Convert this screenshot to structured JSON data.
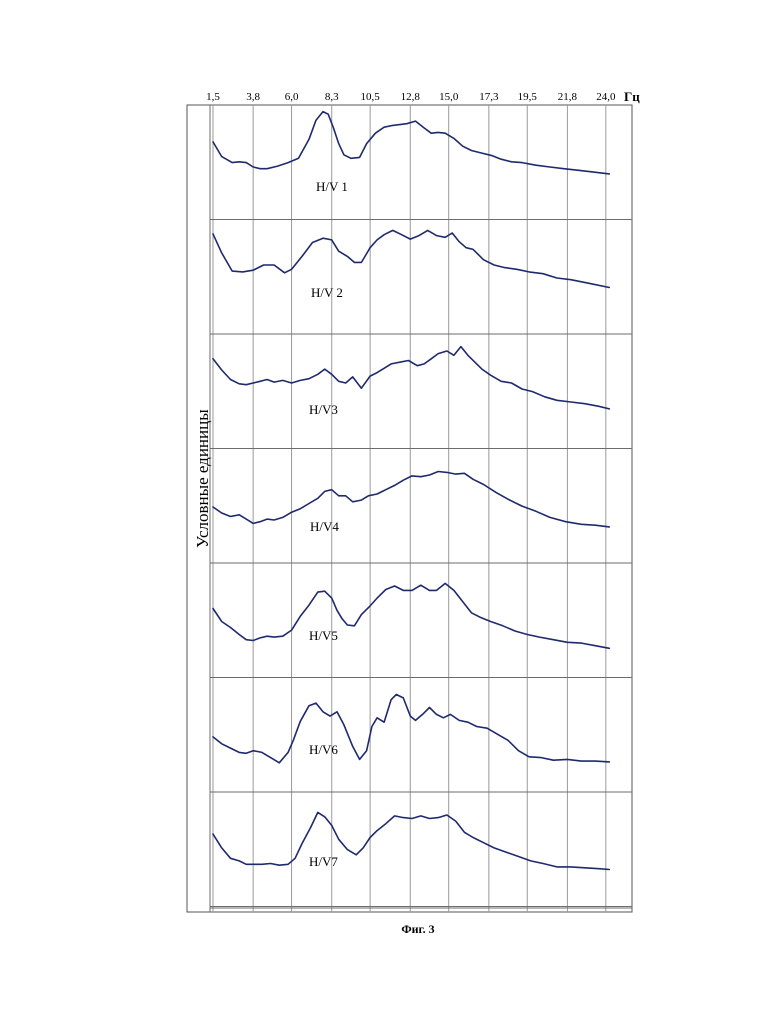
{
  "chart_data": {
    "type": "line",
    "x_unit": "Гц",
    "y_label": "Условные единицы",
    "caption": "Фиг. 3",
    "ticks": [
      {
        "value": 1.5,
        "label": "1,5"
      },
      {
        "value": 3.8,
        "label": "3,8"
      },
      {
        "value": 6.0,
        "label": "6,0"
      },
      {
        "value": 8.3,
        "label": "8,3"
      },
      {
        "value": 10.5,
        "label": "10,5"
      },
      {
        "value": 12.8,
        "label": "12,8"
      },
      {
        "value": 15.0,
        "label": "15,0"
      },
      {
        "value": 17.3,
        "label": "17,3"
      },
      {
        "value": 19.5,
        "label": "19,5"
      },
      {
        "value": 21.8,
        "label": "21,8"
      },
      {
        "value": 24.0,
        "label": "24,0"
      }
    ],
    "xlim": [
      1.5,
      25.5
    ],
    "ylim": [
      0,
      1
    ],
    "grid": true,
    "series": [
      {
        "name": "H/V 1",
        "x": [
          1.5,
          2.0,
          2.6,
          3.0,
          3.4,
          3.8,
          4.2,
          4.6,
          5.2,
          5.8,
          6.4,
          7.0,
          7.4,
          7.8,
          8.1,
          8.4,
          8.7,
          9.0,
          9.4,
          9.9,
          10.3,
          10.8,
          11.3,
          11.8,
          12.2,
          12.6,
          13.1,
          13.6,
          14.0,
          14.4,
          14.8,
          15.3,
          15.8,
          16.3,
          16.9,
          17.5,
          18.0,
          18.6,
          19.2,
          20.0,
          20.8,
          21.6,
          22.5,
          23.3,
          24.2
        ],
        "y": [
          0.62,
          0.45,
          0.38,
          0.39,
          0.38,
          0.33,
          0.31,
          0.31,
          0.34,
          0.38,
          0.43,
          0.65,
          0.87,
          0.97,
          0.94,
          0.78,
          0.6,
          0.47,
          0.43,
          0.44,
          0.6,
          0.72,
          0.79,
          0.81,
          0.82,
          0.83,
          0.86,
          0.78,
          0.72,
          0.73,
          0.72,
          0.66,
          0.57,
          0.52,
          0.49,
          0.46,
          0.42,
          0.39,
          0.38,
          0.35,
          0.33,
          0.31,
          0.29,
          0.27,
          0.25
        ]
      },
      {
        "name": "H/V 2",
        "x": [
          1.5,
          2.0,
          2.6,
          3.2,
          3.8,
          4.4,
          5.0,
          5.6,
          6.0,
          6.6,
          7.2,
          7.8,
          8.3,
          8.7,
          9.2,
          9.6,
          10.0,
          10.5,
          10.9,
          11.3,
          11.8,
          12.3,
          12.8,
          13.3,
          13.8,
          14.3,
          14.8,
          15.2,
          15.6,
          16.0,
          16.4,
          17.0,
          17.6,
          18.2,
          18.9,
          19.6,
          20.4,
          21.2,
          22.0,
          23.0,
          24.2
        ],
        "y": [
          0.88,
          0.66,
          0.45,
          0.44,
          0.46,
          0.52,
          0.52,
          0.43,
          0.47,
          0.62,
          0.78,
          0.83,
          0.81,
          0.68,
          0.62,
          0.55,
          0.55,
          0.72,
          0.81,
          0.87,
          0.92,
          0.87,
          0.82,
          0.86,
          0.92,
          0.86,
          0.84,
          0.89,
          0.79,
          0.72,
          0.7,
          0.58,
          0.52,
          0.49,
          0.47,
          0.44,
          0.42,
          0.37,
          0.35,
          0.31,
          0.26
        ]
      },
      {
        "name": "H/V3",
        "x": [
          1.5,
          2.0,
          2.5,
          3.0,
          3.4,
          3.8,
          4.2,
          4.6,
          5.0,
          5.5,
          6.0,
          6.5,
          7.0,
          7.5,
          7.9,
          8.3,
          8.7,
          9.1,
          9.5,
          10.0,
          10.5,
          10.9,
          11.3,
          11.7,
          12.2,
          12.7,
          13.2,
          13.6,
          14.0,
          14.4,
          14.9,
          15.3,
          15.7,
          16.1,
          16.5,
          16.9,
          17.4,
          18.0,
          18.6,
          19.2,
          19.8,
          20.5,
          21.2,
          22.0,
          22.8,
          23.6,
          24.2
        ],
        "y": [
          0.76,
          0.63,
          0.52,
          0.47,
          0.46,
          0.48,
          0.5,
          0.52,
          0.49,
          0.51,
          0.48,
          0.51,
          0.53,
          0.58,
          0.64,
          0.58,
          0.5,
          0.48,
          0.55,
          0.42,
          0.56,
          0.6,
          0.65,
          0.7,
          0.72,
          0.74,
          0.68,
          0.7,
          0.76,
          0.82,
          0.85,
          0.8,
          0.9,
          0.8,
          0.72,
          0.64,
          0.57,
          0.5,
          0.48,
          0.41,
          0.38,
          0.32,
          0.28,
          0.26,
          0.24,
          0.21,
          0.18
        ]
      },
      {
        "name": "H/V4",
        "x": [
          1.5,
          2.0,
          2.5,
          3.0,
          3.4,
          3.8,
          4.2,
          4.6,
          5.0,
          5.5,
          6.0,
          6.5,
          7.0,
          7.5,
          7.9,
          8.3,
          8.7,
          9.1,
          9.5,
          10.0,
          10.4,
          10.9,
          11.4,
          11.9,
          12.4,
          12.9,
          13.4,
          13.9,
          14.4,
          14.9,
          15.4,
          15.9,
          16.4,
          17.0,
          17.7,
          18.4,
          19.2,
          20.0,
          20.8,
          21.7,
          22.6,
          23.4,
          24.2
        ],
        "y": [
          0.37,
          0.3,
          0.26,
          0.28,
          0.23,
          0.18,
          0.2,
          0.23,
          0.22,
          0.25,
          0.31,
          0.35,
          0.41,
          0.47,
          0.55,
          0.57,
          0.5,
          0.5,
          0.43,
          0.45,
          0.5,
          0.52,
          0.57,
          0.62,
          0.68,
          0.73,
          0.72,
          0.74,
          0.78,
          0.77,
          0.75,
          0.76,
          0.69,
          0.63,
          0.54,
          0.46,
          0.38,
          0.32,
          0.25,
          0.2,
          0.17,
          0.16,
          0.14
        ]
      },
      {
        "name": "H/V5",
        "x": [
          1.5,
          2.0,
          2.5,
          3.0,
          3.4,
          3.8,
          4.2,
          4.6,
          5.0,
          5.5,
          6.0,
          6.5,
          7.0,
          7.5,
          7.9,
          8.3,
          8.6,
          8.9,
          9.2,
          9.6,
          10.0,
          10.5,
          10.9,
          11.4,
          11.9,
          12.4,
          12.9,
          13.4,
          13.9,
          14.3,
          14.8,
          15.3,
          15.8,
          16.3,
          16.8,
          17.4,
          18.1,
          18.8,
          19.5,
          20.2,
          21.0,
          21.8,
          22.6,
          23.4,
          24.2
        ],
        "y": [
          0.52,
          0.37,
          0.3,
          0.22,
          0.16,
          0.15,
          0.18,
          0.2,
          0.19,
          0.2,
          0.27,
          0.43,
          0.56,
          0.71,
          0.72,
          0.64,
          0.5,
          0.4,
          0.33,
          0.32,
          0.45,
          0.55,
          0.64,
          0.74,
          0.78,
          0.73,
          0.73,
          0.79,
          0.73,
          0.73,
          0.81,
          0.73,
          0.6,
          0.47,
          0.42,
          0.37,
          0.32,
          0.26,
          0.22,
          0.19,
          0.16,
          0.13,
          0.12,
          0.09,
          0.06
        ]
      },
      {
        "name": "H/V6",
        "x": [
          1.5,
          2.0,
          2.5,
          3.0,
          3.4,
          3.8,
          4.3,
          4.8,
          5.3,
          5.8,
          6.1,
          6.5,
          7.0,
          7.4,
          7.8,
          8.2,
          8.6,
          9.0,
          9.5,
          9.9,
          10.3,
          10.6,
          10.9,
          11.3,
          11.7,
          12.0,
          12.4,
          12.8,
          13.1,
          13.5,
          13.9,
          14.3,
          14.7,
          15.1,
          15.6,
          16.1,
          16.6,
          17.2,
          17.8,
          18.4,
          19.0,
          19.6,
          20.3,
          21.0,
          21.8,
          22.6,
          23.4,
          24.2
        ],
        "y": [
          0.36,
          0.28,
          0.23,
          0.18,
          0.17,
          0.2,
          0.18,
          0.12,
          0.06,
          0.18,
          0.32,
          0.54,
          0.72,
          0.75,
          0.65,
          0.6,
          0.65,
          0.5,
          0.25,
          0.1,
          0.2,
          0.48,
          0.58,
          0.53,
          0.79,
          0.85,
          0.81,
          0.6,
          0.55,
          0.62,
          0.7,
          0.62,
          0.58,
          0.62,
          0.55,
          0.53,
          0.48,
          0.46,
          0.39,
          0.32,
          0.2,
          0.13,
          0.12,
          0.09,
          0.1,
          0.08,
          0.08,
          0.07
        ]
      },
      {
        "name": "H/V7",
        "x": [
          1.5,
          2.0,
          2.5,
          3.0,
          3.4,
          3.8,
          4.3,
          4.8,
          5.3,
          5.8,
          6.2,
          6.6,
          7.1,
          7.5,
          7.9,
          8.3,
          8.7,
          9.2,
          9.7,
          10.1,
          10.5,
          10.9,
          11.4,
          11.9,
          12.4,
          12.9,
          13.4,
          13.9,
          14.4,
          14.9,
          15.4,
          15.9,
          16.4,
          17.0,
          17.6,
          18.3,
          19.0,
          19.7,
          20.4,
          21.2,
          22.0,
          22.8,
          23.6,
          24.2
        ],
        "y": [
          0.56,
          0.4,
          0.28,
          0.25,
          0.21,
          0.21,
          0.21,
          0.22,
          0.2,
          0.21,
          0.28,
          0.45,
          0.64,
          0.81,
          0.76,
          0.66,
          0.5,
          0.38,
          0.32,
          0.4,
          0.52,
          0.6,
          0.68,
          0.77,
          0.75,
          0.74,
          0.77,
          0.74,
          0.75,
          0.78,
          0.71,
          0.58,
          0.52,
          0.46,
          0.4,
          0.35,
          0.3,
          0.25,
          0.22,
          0.18,
          0.18,
          0.17,
          0.16,
          0.15
        ]
      }
    ]
  }
}
